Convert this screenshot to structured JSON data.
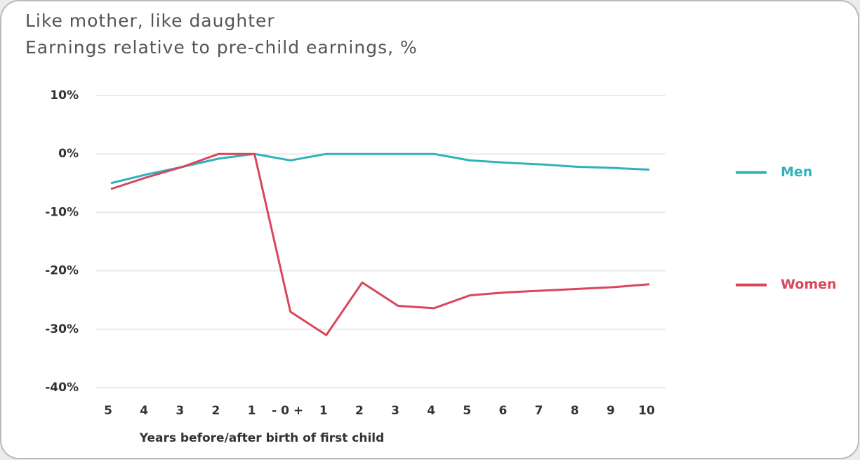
{
  "chart_data": {
    "type": "line",
    "title": "Like mother, like daughter",
    "subtitle": "Earnings relative to pre-child earnings, %",
    "x_label": "Years before/after birth of first child",
    "categories": [
      "5",
      "4",
      "3",
      "2",
      "1",
      "- 0 +",
      "1",
      "2",
      "3",
      "4",
      "5",
      "6",
      "7",
      "8",
      "9",
      "10"
    ],
    "series": [
      {
        "name": "Men",
        "color": "#2fb2bb",
        "values": [
          -5,
          -3.5,
          -2.2,
          -0.8,
          0,
          -1.1,
          0,
          0,
          0,
          0,
          -1.1,
          -1.5,
          -1.8,
          -2.2,
          -2.4,
          -2.7
        ]
      },
      {
        "name": "Women",
        "color": "#d8475a",
        "values": [
          -6,
          -4,
          -2.2,
          0,
          0,
          -27,
          -31,
          -22,
          -26,
          -26.4,
          -24.2,
          -23.7,
          -23.4,
          -23.1,
          -22.8,
          -22.3
        ]
      }
    ],
    "ylim": [
      -40,
      10
    ],
    "yticks": [
      {
        "value": 10,
        "label": "10%"
      },
      {
        "value": 0,
        "label": "0%"
      },
      {
        "value": -10,
        "label": "-10%"
      },
      {
        "value": -20,
        "label": "-20%"
      },
      {
        "value": -30,
        "label": "-30%"
      },
      {
        "value": -40,
        "label": "-40%"
      }
    ],
    "grid": true
  }
}
